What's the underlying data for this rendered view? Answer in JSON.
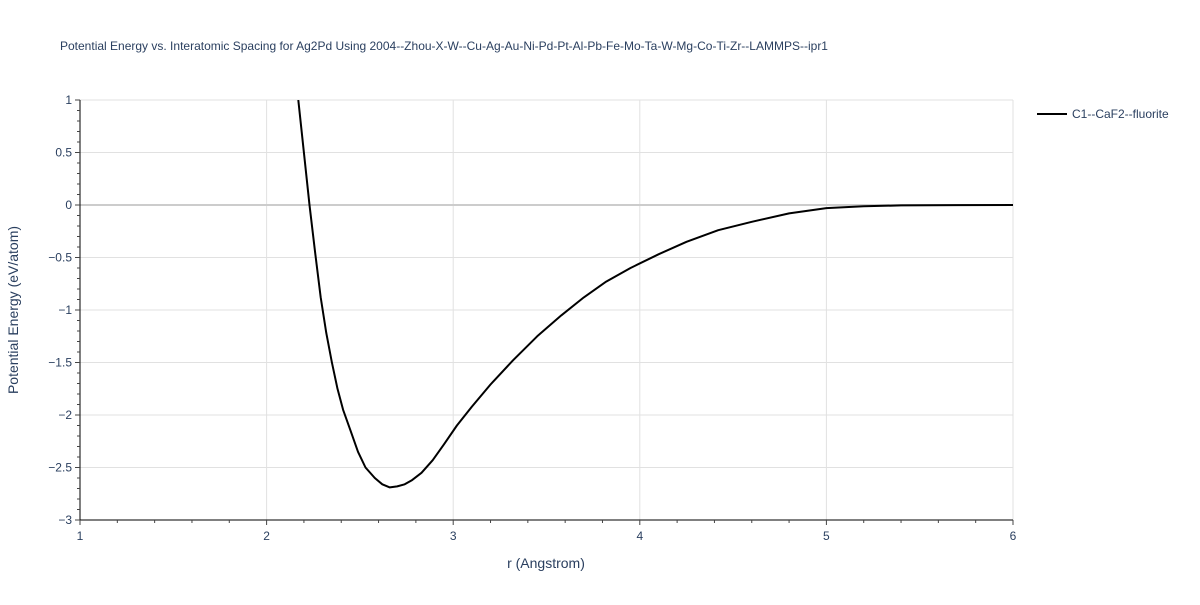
{
  "chart_data": {
    "type": "line",
    "title": "Potential Energy vs. Interatomic Spacing for Ag2Pd Using 2004--Zhou-X-W--Cu-Ag-Au-Ni-Pd-Pt-Al-Pb-Fe-Mo-Ta-W-Mg-Co-Ti-Zr--LAMMPS--ipr1",
    "xlabel": "r (Angstrom)",
    "ylabel": "Potential Energy (eV/atom)",
    "xlim": [
      1,
      6
    ],
    "ylim": [
      -3,
      1
    ],
    "xticks": [
      1,
      2,
      3,
      4,
      5,
      6
    ],
    "yticks": [
      1,
      0.5,
      0,
      -0.5,
      -1,
      -1.5,
      -2,
      -2.5,
      -3
    ],
    "xtick_labels": [
      "1",
      "2",
      "3",
      "4",
      "5",
      "6"
    ],
    "ytick_labels": [
      "1",
      "0.5",
      "0",
      "−0.5",
      "−1",
      "−1.5",
      "−2",
      "−2.5",
      "−3"
    ],
    "grid": true,
    "legend_position": "top-right",
    "series": [
      {
        "name": "C1--CaF2--fluorite",
        "color": "#000000",
        "x": [
          2.17,
          2.2,
          2.23,
          2.26,
          2.29,
          2.32,
          2.35,
          2.38,
          2.41,
          2.45,
          2.49,
          2.53,
          2.58,
          2.62,
          2.66,
          2.7,
          2.74,
          2.78,
          2.83,
          2.89,
          2.95,
          3.02,
          3.1,
          3.2,
          3.32,
          3.45,
          3.58,
          3.7,
          3.82,
          3.95,
          4.1,
          4.25,
          4.42,
          4.6,
          4.8,
          5.0,
          5.2,
          5.4,
          5.7,
          6.0
        ],
        "y": [
          1.0,
          0.5,
          0.0,
          -0.45,
          -0.88,
          -1.22,
          -1.5,
          -1.75,
          -1.95,
          -2.15,
          -2.35,
          -2.5,
          -2.6,
          -2.66,
          -2.69,
          -2.68,
          -2.66,
          -2.62,
          -2.55,
          -2.43,
          -2.28,
          -2.1,
          -1.92,
          -1.71,
          -1.48,
          -1.25,
          -1.05,
          -0.88,
          -0.73,
          -0.6,
          -0.47,
          -0.35,
          -0.24,
          -0.16,
          -0.08,
          -0.03,
          -0.012,
          -0.004,
          -0.001,
          0.0
        ]
      }
    ]
  }
}
